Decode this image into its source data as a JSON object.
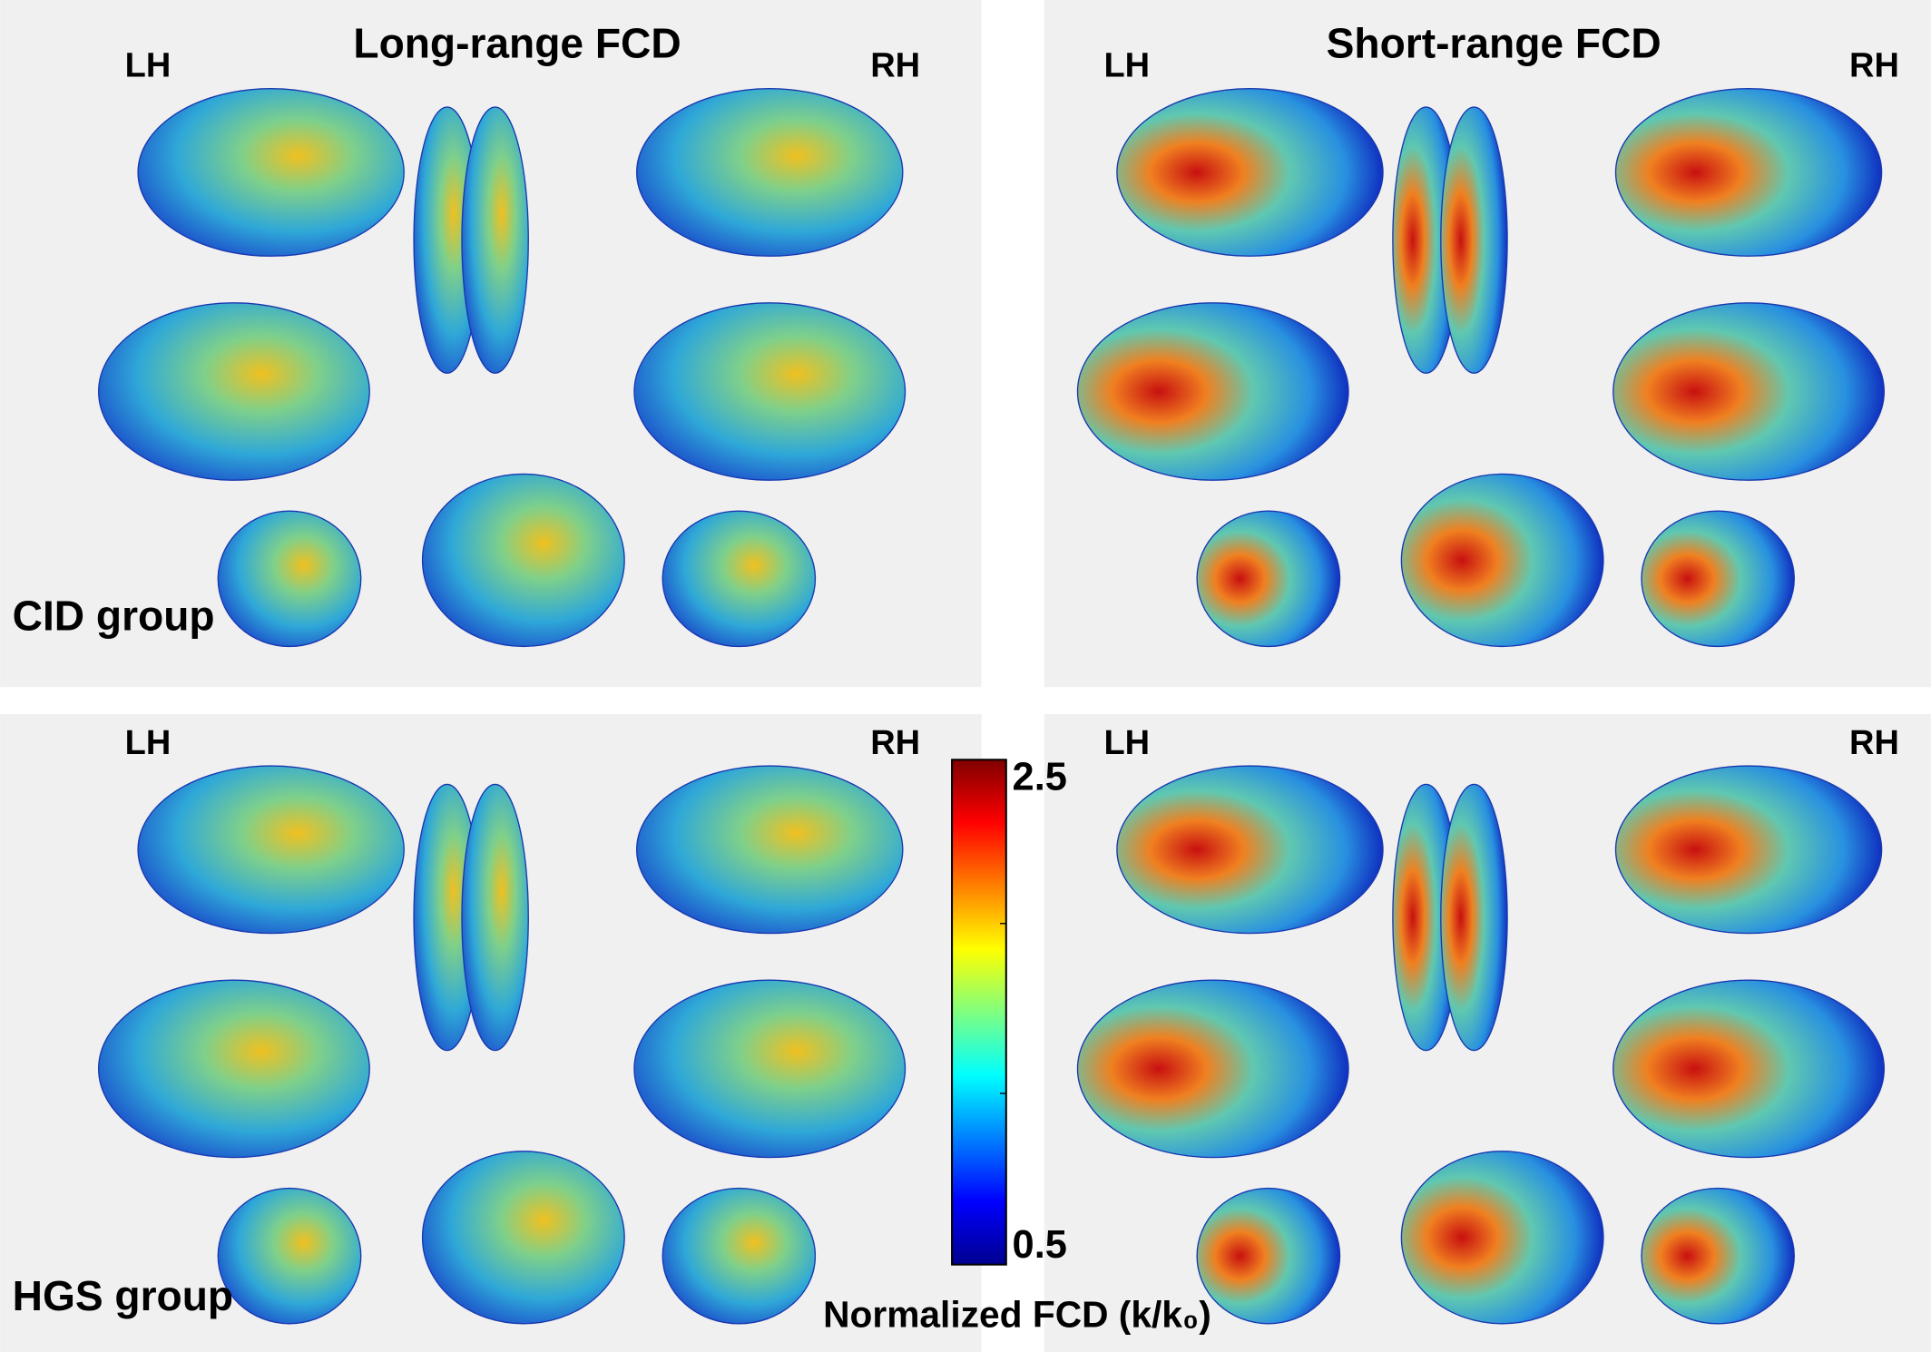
{
  "panels": [
    {
      "title": "Long-range FCD",
      "left_label": "LH",
      "right_label": "RH",
      "group_label": "CID group"
    },
    {
      "title": "Short-range FCD",
      "left_label": "LH",
      "right_label": "RH"
    },
    {
      "left_label": "LH",
      "right_label": "RH",
      "group_label": "HGS group"
    },
    {
      "left_label": "LH",
      "right_label": "RH"
    }
  ],
  "colorbar": {
    "label": "Normalized FCD (k/k₀)",
    "range": [
      0.5,
      2.5
    ],
    "ticks": [
      0.5,
      2.5
    ]
  }
}
